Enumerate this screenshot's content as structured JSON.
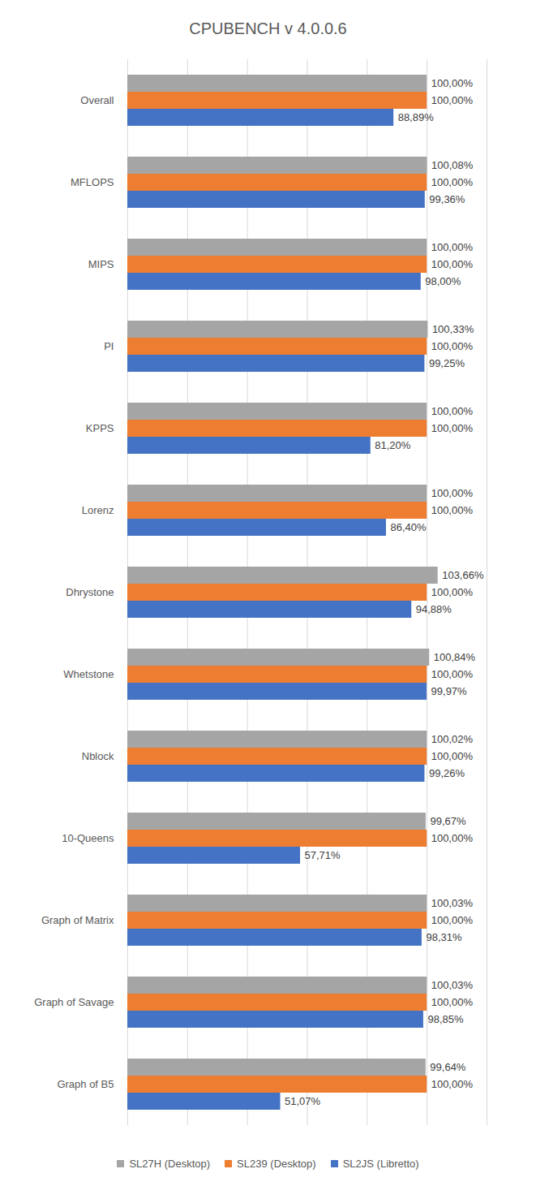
{
  "chart_data": {
    "type": "bar",
    "title": "CPUBENCH v 4.0.0.6",
    "orientation": "horizontal",
    "categories": [
      "Overall",
      "MFLOPS",
      "MIPS",
      "PI",
      "KPPS",
      "Lorenz",
      "Dhrystone",
      "Whetstone",
      "Nblock",
      "10-Queens",
      "Graph of Matrix",
      "Graph of Savage",
      "Graph of B5"
    ],
    "series": [
      {
        "name": "SL27H (Desktop)",
        "color": "#a5a5a5",
        "values": [
          100.0,
          100.08,
          100.0,
          100.33,
          100.0,
          100.0,
          103.66,
          100.84,
          100.02,
          99.67,
          100.03,
          100.03,
          99.64
        ],
        "value_labels": [
          "100,00%",
          "100,08%",
          "100,00%",
          "100,33%",
          "100,00%",
          "100,00%",
          "103,66%",
          "100,84%",
          "100,02%",
          "99,67%",
          "100,03%",
          "100,03%",
          "99,64%"
        ]
      },
      {
        "name": "SL239 (Desktop)",
        "color": "#ed7d31",
        "values": [
          100.0,
          100.0,
          100.0,
          100.0,
          100.0,
          100.0,
          100.0,
          100.0,
          100.0,
          100.0,
          100.0,
          100.0,
          100.0
        ],
        "value_labels": [
          "100,00%",
          "100,00%",
          "100,00%",
          "100,00%",
          "100,00%",
          "100,00%",
          "100,00%",
          "100,00%",
          "100,00%",
          "100,00%",
          "100,00%",
          "100,00%",
          "100,00%"
        ]
      },
      {
        "name": "SL2JS (Libretto)",
        "color": "#4472c4",
        "values": [
          88.89,
          99.36,
          98.0,
          99.25,
          81.2,
          86.4,
          94.88,
          99.97,
          99.26,
          57.71,
          98.31,
          98.85,
          51.07
        ],
        "value_labels": [
          "88,89%",
          "99,36%",
          "98,00%",
          "99,25%",
          "81,20%",
          "86,40%",
          "94,88%",
          "99,97%",
          "99,26%",
          "57,71%",
          "98,31%",
          "98,85%",
          "51,07%"
        ]
      }
    ],
    "xlim": [
      0,
      120
    ],
    "xticks": [
      0,
      20,
      40,
      60,
      80,
      100,
      120
    ],
    "grid": true,
    "data_labels": true,
    "tick_labels": "y",
    "legend": "bottom"
  }
}
